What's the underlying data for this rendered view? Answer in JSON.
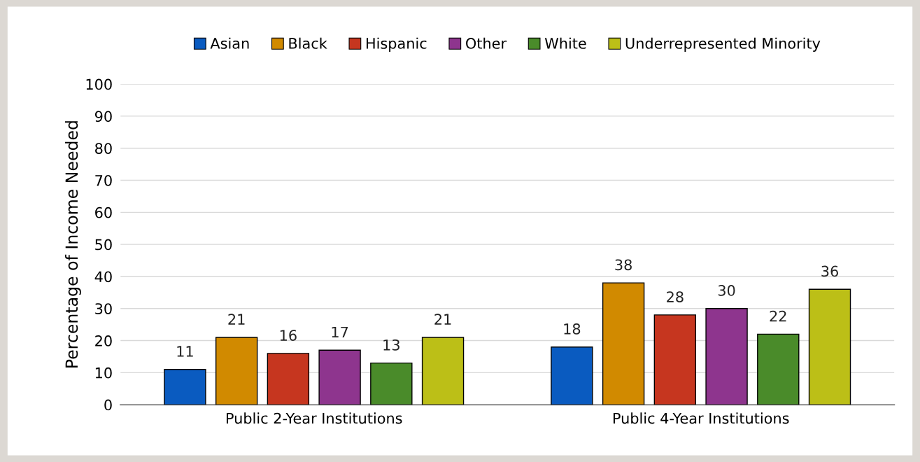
{
  "chart_data": {
    "type": "bar",
    "ylabel": "Percentage of Income Needed",
    "categories": [
      "Public 2-Year Institutions",
      "Public 4-Year Institutions"
    ],
    "series": [
      {
        "name": "Asian",
        "color": "#0a5bc0",
        "values": [
          11,
          18
        ]
      },
      {
        "name": "Black",
        "color": "#d18a00",
        "values": [
          21,
          38
        ]
      },
      {
        "name": "Hispanic",
        "color": "#c6361f",
        "values": [
          16,
          28
        ]
      },
      {
        "name": "Other",
        "color": "#8e358e",
        "values": [
          17,
          30
        ]
      },
      {
        "name": "White",
        "color": "#4a8b2a",
        "values": [
          13,
          22
        ]
      },
      {
        "name": "Underrepresented Minority",
        "color": "#bcbf17",
        "values": [
          21,
          36
        ]
      }
    ],
    "ylim": [
      0,
      100
    ],
    "yticks": [
      0,
      10,
      20,
      30,
      40,
      50,
      60,
      70,
      80,
      90,
      100
    ],
    "grid": "y",
    "legend": "top",
    "data_labels": true
  }
}
